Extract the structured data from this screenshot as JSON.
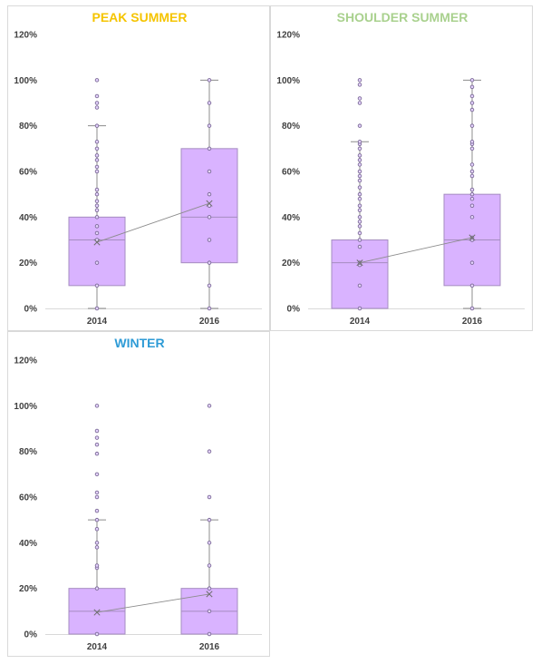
{
  "colors": {
    "box_fill": "#d9b3ff",
    "box_stroke": "#a58cc0",
    "whisker": "#8c8c8c",
    "point_stroke": "#7b6a96",
    "point_fill": "#e6d4ff",
    "grid": "#d9d9d9",
    "axis_text": "#404040"
  },
  "chart_data": [
    {
      "type": "box",
      "title": "PEAK SUMMER",
      "title_color": "#f5c400",
      "categories": [
        "2014",
        "2016"
      ],
      "y_ticks": [
        "0%",
        "20%",
        "40%",
        "60%",
        "80%",
        "100%",
        "120%"
      ],
      "ylim": [
        0,
        1.2
      ],
      "boxes": [
        {
          "category": "2014",
          "min": 0,
          "q1": 0.1,
          "median": 0.3,
          "q3": 0.4,
          "max": 0.8,
          "mean": 0.29,
          "points": [
            0,
            0.1,
            0.2,
            0.3,
            0.33,
            0.36,
            0.4,
            0.43,
            0.45,
            0.47,
            0.5,
            0.52,
            0.6,
            0.62,
            0.65,
            0.67,
            0.7,
            0.73,
            0.8,
            0.88,
            0.9,
            0.93,
            1.0
          ]
        },
        {
          "category": "2016",
          "min": 0,
          "q1": 0.2,
          "median": 0.4,
          "q3": 0.7,
          "max": 1.0,
          "mean": 0.46,
          "points": [
            0,
            0.1,
            0.2,
            0.3,
            0.4,
            0.45,
            0.5,
            0.6,
            0.7,
            0.8,
            0.9,
            1.0
          ]
        }
      ]
    },
    {
      "type": "box",
      "title": "SHOULDER SUMMER",
      "title_color": "#a9d18e",
      "categories": [
        "2014",
        "2016"
      ],
      "y_ticks": [
        "0%",
        "20%",
        "40%",
        "60%",
        "80%",
        "100%",
        "120%"
      ],
      "ylim": [
        0,
        1.2
      ],
      "boxes": [
        {
          "category": "2014",
          "min": 0,
          "q1": 0,
          "median": 0.2,
          "q3": 0.3,
          "max": 0.73,
          "mean": 0.2,
          "points": [
            0,
            0.1,
            0.19,
            0.2,
            0.27,
            0.3,
            0.33,
            0.36,
            0.38,
            0.4,
            0.43,
            0.45,
            0.48,
            0.5,
            0.53,
            0.56,
            0.58,
            0.6,
            0.63,
            0.65,
            0.67,
            0.7,
            0.72,
            0.73,
            0.8,
            0.9,
            0.92,
            0.98,
            1.0
          ]
        },
        {
          "category": "2016",
          "min": 0,
          "q1": 0.1,
          "median": 0.3,
          "q3": 0.5,
          "max": 1.0,
          "mean": 0.31,
          "points": [
            0,
            0.1,
            0.2,
            0.3,
            0.31,
            0.4,
            0.45,
            0.48,
            0.5,
            0.52,
            0.58,
            0.6,
            0.63,
            0.7,
            0.72,
            0.73,
            0.8,
            0.87,
            0.9,
            0.93,
            0.97,
            1.0
          ]
        }
      ]
    },
    {
      "type": "box",
      "title": "WINTER",
      "title_color": "#2e9bd6",
      "categories": [
        "2014",
        "2016"
      ],
      "y_ticks": [
        "0%",
        "20%",
        "40%",
        "60%",
        "80%",
        "100%",
        "120%"
      ],
      "ylim": [
        0,
        1.2
      ],
      "boxes": [
        {
          "category": "2014",
          "min": 0,
          "q1": 0,
          "median": 0.1,
          "q3": 0.2,
          "max": 0.5,
          "mean": 0.095,
          "points": [
            0,
            0.2,
            0.29,
            0.3,
            0.38,
            0.4,
            0.46,
            0.5,
            0.54,
            0.6,
            0.62,
            0.7,
            0.79,
            0.83,
            0.86,
            0.89,
            1.0
          ]
        },
        {
          "category": "2016",
          "min": 0,
          "q1": 0,
          "median": 0.1,
          "q3": 0.2,
          "max": 0.5,
          "mean": 0.175,
          "points": [
            0,
            0.1,
            0.2,
            0.3,
            0.4,
            0.5,
            0.6,
            0.8,
            1.0
          ]
        }
      ]
    }
  ]
}
